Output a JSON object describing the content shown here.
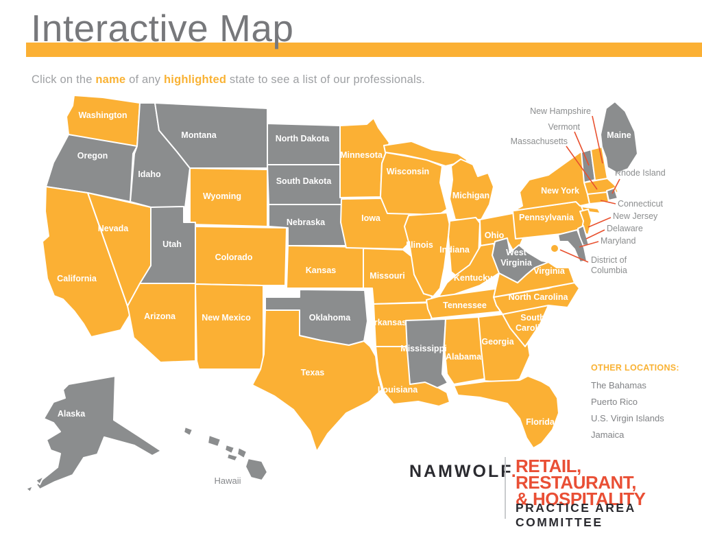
{
  "header": {
    "title": "Interactive Map",
    "instruction": {
      "part1": "Click on the ",
      "emph1": "name",
      "part2": " of any ",
      "emph2": "highlighted",
      "part3": " state to see a list of our professionals."
    }
  },
  "map": {
    "colors": {
      "highlighted": "#FBB034",
      "not_highlighted": "#8B8D8E",
      "state_border": "#FFFFFF",
      "state_label": "#FFFFFF",
      "outside_label": "#85878A",
      "callout_text": "#8B8D8E",
      "leader_line": "#E8502E"
    },
    "legend_note": "highlighted = has professionals; gray = none",
    "states": [
      {
        "id": "WA",
        "name": "Washington",
        "highlighted": true
      },
      {
        "id": "OR",
        "name": "Oregon",
        "highlighted": false
      },
      {
        "id": "CA",
        "name": "California",
        "highlighted": true
      },
      {
        "id": "NV",
        "name": "Nevada",
        "highlighted": true
      },
      {
        "id": "ID",
        "name": "Idaho",
        "highlighted": false
      },
      {
        "id": "MT",
        "name": "Montana",
        "highlighted": false
      },
      {
        "id": "WY",
        "name": "Wyoming",
        "highlighted": true
      },
      {
        "id": "UT",
        "name": "Utah",
        "highlighted": false
      },
      {
        "id": "CO",
        "name": "Colorado",
        "highlighted": true
      },
      {
        "id": "AZ",
        "name": "Arizona",
        "highlighted": true
      },
      {
        "id": "NM",
        "name": "New Mexico",
        "highlighted": true
      },
      {
        "id": "ND",
        "name": "North Dakota",
        "highlighted": false
      },
      {
        "id": "SD",
        "name": "South Dakota",
        "highlighted": false
      },
      {
        "id": "NE",
        "name": "Nebraska",
        "highlighted": false
      },
      {
        "id": "KS",
        "name": "Kansas",
        "highlighted": true
      },
      {
        "id": "OK",
        "name": "Oklahoma",
        "highlighted": false
      },
      {
        "id": "TX",
        "name": "Texas",
        "highlighted": true
      },
      {
        "id": "MN",
        "name": "Minnesota",
        "highlighted": true
      },
      {
        "id": "IA",
        "name": "Iowa",
        "highlighted": true
      },
      {
        "id": "MO",
        "name": "Missouri",
        "highlighted": true
      },
      {
        "id": "AR",
        "name": "Arkansas",
        "highlighted": true
      },
      {
        "id": "LA",
        "name": "Louisiana",
        "highlighted": true
      },
      {
        "id": "WI",
        "name": "Wisconsin",
        "highlighted": true
      },
      {
        "id": "MI",
        "name": "Michigan",
        "highlighted": true
      },
      {
        "id": "IL",
        "name": "Illinois",
        "highlighted": true
      },
      {
        "id": "IN",
        "name": "Indiana",
        "highlighted": true
      },
      {
        "id": "OH",
        "name": "Ohio",
        "highlighted": true
      },
      {
        "id": "KY",
        "name": "Kentucky",
        "highlighted": true
      },
      {
        "id": "TN",
        "name": "Tennessee",
        "highlighted": true
      },
      {
        "id": "MS",
        "name": "Mississippi",
        "highlighted": false
      },
      {
        "id": "AL",
        "name": "Alabama",
        "highlighted": true
      },
      {
        "id": "GA",
        "name": "Georgia",
        "highlighted": true
      },
      {
        "id": "FL",
        "name": "Florida",
        "highlighted": true
      },
      {
        "id": "SC",
        "name": "South Carolina",
        "highlighted": true
      },
      {
        "id": "NC",
        "name": "North Carolina",
        "highlighted": true
      },
      {
        "id": "VA",
        "name": "Virginia",
        "highlighted": true
      },
      {
        "id": "WV",
        "name": "West Virginia",
        "highlighted": false
      },
      {
        "id": "PA",
        "name": "Pennsylvania",
        "highlighted": true
      },
      {
        "id": "NY",
        "name": "New York",
        "highlighted": true
      },
      {
        "id": "ME",
        "name": "Maine",
        "highlighted": false
      },
      {
        "id": "VT",
        "name": "Vermont",
        "highlighted": false
      },
      {
        "id": "NH",
        "name": "New Hampshire",
        "highlighted": true
      },
      {
        "id": "MA",
        "name": "Massachusetts",
        "highlighted": true
      },
      {
        "id": "RI",
        "name": "Rhode Island",
        "highlighted": false
      },
      {
        "id": "CT",
        "name": "Connecticut",
        "highlighted": true
      },
      {
        "id": "NJ",
        "name": "New Jersey",
        "highlighted": true
      },
      {
        "id": "DE",
        "name": "Delaware",
        "highlighted": false
      },
      {
        "id": "MD",
        "name": "Maryland",
        "highlighted": false
      },
      {
        "id": "AK",
        "name": "Alaska",
        "highlighted": false
      },
      {
        "id": "HI",
        "name": "Hawaii",
        "highlighted": false
      },
      {
        "id": "DC",
        "name": "District of Columbia",
        "highlighted": true
      }
    ],
    "callouts": [
      {
        "id": "NH",
        "text": "New Hampshire"
      },
      {
        "id": "VT",
        "text": "Vermont"
      },
      {
        "id": "MA",
        "text": "Massachusetts"
      },
      {
        "id": "RI",
        "text": "Rhode Island"
      },
      {
        "id": "CT",
        "text": "Connecticut"
      },
      {
        "id": "NJ",
        "text": "New Jersey"
      },
      {
        "id": "DE",
        "text": "Delaware"
      },
      {
        "id": "MD",
        "text": "Maryland"
      },
      {
        "id": "DC",
        "text": "District of Columbia",
        "lines": [
          "District of",
          "Columbia"
        ]
      }
    ]
  },
  "other_locations": {
    "heading": "OTHER LOCATIONS:",
    "items": [
      "The Bahamas",
      "Puerto Rico",
      "U.S. Virgin Islands",
      "Jamaica"
    ]
  },
  "footer": {
    "brand": "NAMWOLF",
    "brand_dot": ".",
    "committee_line1": "RETAIL, RESTAURANT,",
    "committee_line2": "& HOSPITALITY",
    "committee_subtitle": "PRACTICE AREA COMMITTEE"
  }
}
